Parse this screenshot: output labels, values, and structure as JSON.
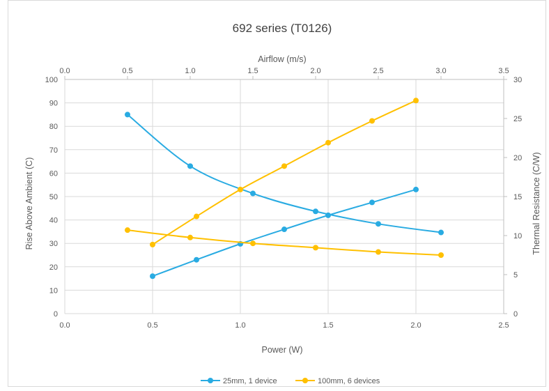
{
  "chart_data": {
    "type": "scatter",
    "title": "692 series (T0126)",
    "xlabel": "Power (W)",
    "x2label": "Airflow (m/s)",
    "ylabel": "Rise Above Ambient (C)",
    "y2label": "Thermal Resistance (C/W)",
    "xlim": [
      0,
      2.5
    ],
    "x2lim": [
      0,
      3.5
    ],
    "ylim": [
      0,
      100
    ],
    "y2lim": [
      0,
      30
    ],
    "x_ticks": [
      "0.0",
      "0.5",
      "1.0",
      "1.5",
      "2.0",
      "2.5"
    ],
    "x2_ticks": [
      "0.0",
      "0.5",
      "1.0",
      "1.5",
      "2.0",
      "2.5",
      "3.0",
      "3.5"
    ],
    "y_ticks": [
      "0",
      "10",
      "20",
      "30",
      "40",
      "50",
      "60",
      "70",
      "80",
      "90",
      "100"
    ],
    "y2_ticks": [
      "0",
      "5",
      "10",
      "15",
      "20",
      "25",
      "30"
    ],
    "grid": true,
    "legend_position": "bottom",
    "series": [
      {
        "name": "25mm, 1 device",
        "color": "#29abe2",
        "rise_vs_power": {
          "x": [
            0.5,
            0.75,
            1.0,
            1.25,
            1.5,
            1.75,
            2.0
          ],
          "y": [
            16,
            23,
            29.8,
            36,
            42,
            47.5,
            53
          ]
        },
        "resistance_vs_airflow": {
          "x": [
            0.5,
            1.0,
            1.5,
            2.0,
            2.5,
            3.0
          ],
          "y": [
            25.5,
            18.9,
            15.4,
            13.1,
            11.5,
            10.4
          ]
        }
      },
      {
        "name": "100mm, 6 devices",
        "color": "#ffc000",
        "rise_vs_power": {
          "x": [
            0.5,
            0.75,
            1.0,
            1.25,
            1.5,
            1.75,
            2.0
          ],
          "y": [
            29.5,
            41.5,
            53,
            63,
            73,
            82.3,
            91
          ]
        },
        "resistance_vs_airflow": {
          "x": [
            0.5,
            1.0,
            1.5,
            2.0,
            2.5,
            3.0
          ],
          "y": [
            10.7,
            9.75,
            9.0,
            8.45,
            7.9,
            7.5
          ]
        }
      }
    ]
  }
}
